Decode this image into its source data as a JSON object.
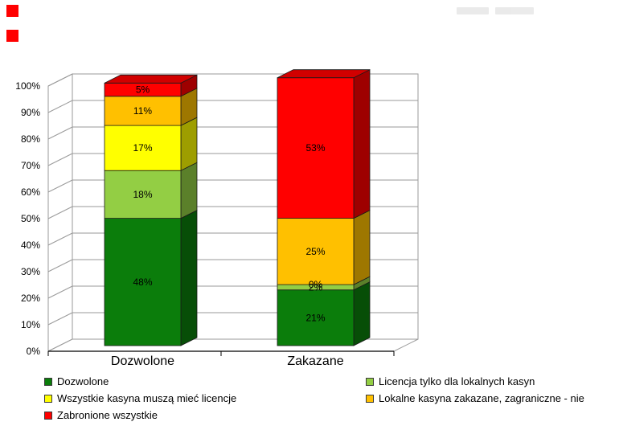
{
  "chart_data": {
    "type": "bar",
    "subtype": "stacked-100-3d",
    "title": "",
    "categories": [
      "Dozwolone",
      "Zakazane"
    ],
    "series": [
      {
        "name": "Dozwolone",
        "color": "#0b7d0b",
        "values": [
          48,
          21
        ]
      },
      {
        "name": "Licencja tylko dla lokalnych kasyn",
        "color": "#93ce44",
        "values": [
          18,
          2
        ]
      },
      {
        "name": "Wszystkie kasyna muszą mieć licencje",
        "color": "#ffff00",
        "values": [
          17,
          0
        ]
      },
      {
        "name": "Lokalne kasyna zakazane, zagraniczne - nie",
        "color": "#ffc000",
        "values": [
          11,
          25
        ]
      },
      {
        "name": "Zabronione wszystkie",
        "color": "#ff0000",
        "values": [
          5,
          53
        ]
      }
    ],
    "data_labels": [
      [
        "48%",
        "18%",
        "17%",
        "11%",
        "5%"
      ],
      [
        "21%",
        "2%",
        "0%",
        "25%",
        "53%"
      ]
    ],
    "y_ticks": [
      "0%",
      "10%",
      "20%",
      "30%",
      "40%",
      "50%",
      "60%",
      "70%",
      "80%",
      "90%",
      "100%"
    ],
    "ylim": [
      0,
      100
    ],
    "grid": true,
    "legend_position": "bottom",
    "legend_columns": [
      [
        0,
        2,
        4
      ],
      [
        1,
        3
      ]
    ]
  },
  "decorations": {
    "red_square_color": "#ff0000",
    "gridline_color": "#9a9a9a",
    "axis_color": "#000000",
    "wall_color": "#ffffff"
  }
}
